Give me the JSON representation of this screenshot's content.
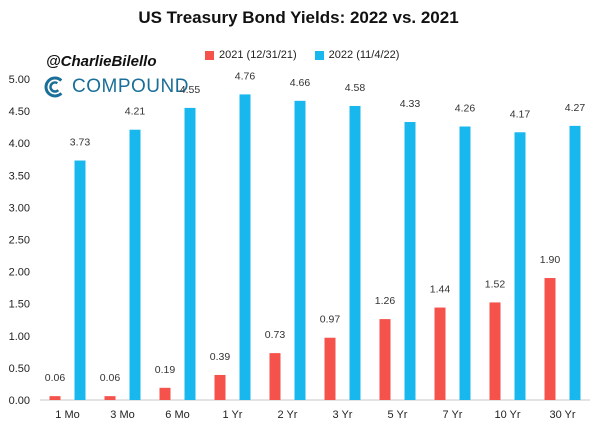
{
  "header": {
    "title": "US Treasury Bond Yields: 2022 vs. 2021",
    "handle": "@CharlieBilello",
    "brand": "COMPOUND",
    "brand_icon": "compound-logo-icon"
  },
  "colors": {
    "series_2021": "#f4524b",
    "series_2022": "#18b8ef",
    "axis": "#c8c8c8",
    "text": "#222222"
  },
  "chart_data": {
    "type": "bar",
    "title": "US Treasury Bond Yields: 2022 vs. 2021",
    "xlabel": "",
    "ylabel": "",
    "categories": [
      "1 Mo",
      "3 Mo",
      "6 Mo",
      "1 Yr",
      "2 Yr",
      "3 Yr",
      "5 Yr",
      "7 Yr",
      "10 Yr",
      "30 Yr"
    ],
    "series": [
      {
        "name": "2021 (12/31/21)",
        "values": [
          0.06,
          0.06,
          0.19,
          0.39,
          0.73,
          0.97,
          1.26,
          1.44,
          1.52,
          1.9
        ],
        "labels": [
          "0.06",
          "0.06",
          "0.19",
          "0.39",
          "0.73",
          "0.97",
          "1.26",
          "1.44",
          "1.52",
          "1.90"
        ]
      },
      {
        "name": "2022 (11/4/22)",
        "values": [
          3.73,
          4.21,
          4.55,
          4.76,
          4.66,
          4.58,
          4.33,
          4.26,
          4.17,
          4.27
        ],
        "labels": [
          "3.73",
          "4.21",
          "4.55",
          "4.76",
          "4.66",
          "4.58",
          "4.33",
          "4.26",
          "4.17",
          "4.27"
        ]
      }
    ],
    "ylim": [
      0,
      5
    ],
    "yticks": [
      "0.00",
      "0.50",
      "1.00",
      "1.50",
      "2.00",
      "2.50",
      "3.00",
      "3.50",
      "4.00",
      "4.50",
      "5.00"
    ],
    "grid": false,
    "legend_position": "top"
  }
}
